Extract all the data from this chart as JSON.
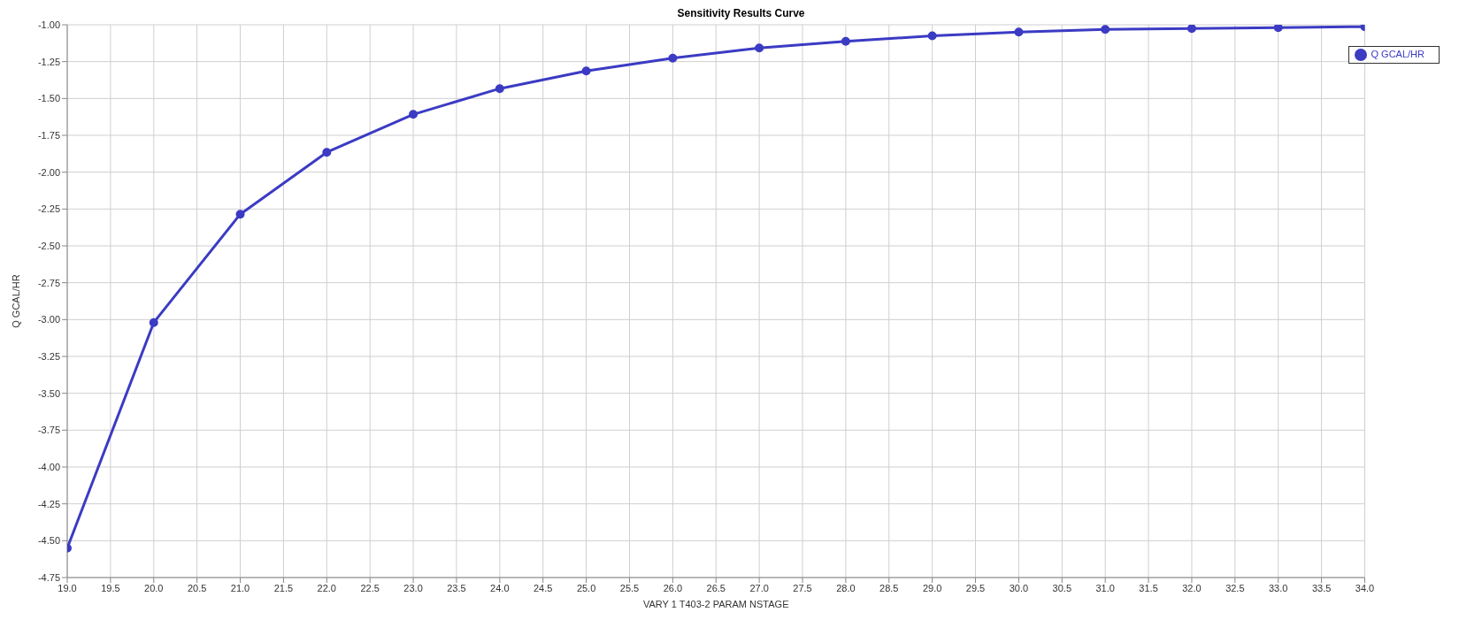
{
  "chart_data": {
    "type": "line",
    "title": "Sensitivity Results Curve",
    "xlabel": "VARY  1 T403-2 PARAM NSTAGE",
    "ylabel": "Q GCAL/HR",
    "x": [
      19,
      20,
      21,
      22,
      23,
      24,
      25,
      26,
      27,
      28,
      29,
      30,
      31,
      32,
      33,
      34
    ],
    "series": [
      {
        "name": "Q GCAL/HR",
        "color": "#3b3bc4",
        "values": [
          -4.55,
          -3.02,
          -2.285,
          -1.865,
          -1.608,
          -1.433,
          -1.314,
          -1.226,
          -1.157,
          -1.113,
          -1.075,
          -1.05,
          -1.031,
          -1.025,
          -1.019,
          -1.013
        ]
      }
    ],
    "xlim": [
      19,
      34
    ],
    "xticks": [
      {
        "value": 19,
        "label": "19.0"
      },
      {
        "value": 19.5,
        "label": "19.5"
      },
      {
        "value": 20,
        "label": "20.0"
      },
      {
        "value": 20.5,
        "label": "20.5"
      },
      {
        "value": 21,
        "label": "21.0"
      },
      {
        "value": 21.5,
        "label": "21.5"
      },
      {
        "value": 22,
        "label": "22.0"
      },
      {
        "value": 22.5,
        "label": "22.5"
      },
      {
        "value": 23,
        "label": "23.0"
      },
      {
        "value": 23.5,
        "label": "23.5"
      },
      {
        "value": 24,
        "label": "24.0"
      },
      {
        "value": 24.5,
        "label": "24.5"
      },
      {
        "value": 25,
        "label": "25.0"
      },
      {
        "value": 25.5,
        "label": "25.5"
      },
      {
        "value": 26,
        "label": "26.0"
      },
      {
        "value": 26.5,
        "label": "26.5"
      },
      {
        "value": 27,
        "label": "27.0"
      },
      {
        "value": 27.5,
        "label": "27.5"
      },
      {
        "value": 28,
        "label": "28.0"
      },
      {
        "value": 28.5,
        "label": "28.5"
      },
      {
        "value": 29,
        "label": "29.0"
      },
      {
        "value": 29.5,
        "label": "29.5"
      },
      {
        "value": 30,
        "label": "30.0"
      },
      {
        "value": 30.5,
        "label": "30.5"
      },
      {
        "value": 31,
        "label": "31.0"
      },
      {
        "value": 31.5,
        "label": "31.5"
      },
      {
        "value": 32,
        "label": "32.0"
      },
      {
        "value": 32.5,
        "label": "32.5"
      },
      {
        "value": 33,
        "label": "33.0"
      },
      {
        "value": 33.5,
        "label": "33.5"
      },
      {
        "value": 34,
        "label": "34.0"
      }
    ],
    "ylim": [
      -4.75,
      -1
    ],
    "yticks": [
      {
        "value": -4.75,
        "label": "-4.75"
      },
      {
        "value": -4.5,
        "label": "-4.50"
      },
      {
        "value": -4.25,
        "label": "-4.25"
      },
      {
        "value": -4,
        "label": "-4.00"
      },
      {
        "value": -3.75,
        "label": "-3.75"
      },
      {
        "value": -3.5,
        "label": "-3.50"
      },
      {
        "value": -3.25,
        "label": "-3.25"
      },
      {
        "value": -3,
        "label": "-3.00"
      },
      {
        "value": -2.75,
        "label": "-2.75"
      },
      {
        "value": -2.5,
        "label": "-2.50"
      },
      {
        "value": -2.25,
        "label": "-2.25"
      },
      {
        "value": -2,
        "label": "-2.00"
      },
      {
        "value": -1.75,
        "label": "-1.75"
      },
      {
        "value": -1.5,
        "label": "-1.50"
      },
      {
        "value": -1.25,
        "label": "-1.25"
      },
      {
        "value": -1,
        "label": "-1.00"
      }
    ],
    "grid": true,
    "legend": "top right",
    "marker": "circle",
    "line_style": "solid"
  }
}
